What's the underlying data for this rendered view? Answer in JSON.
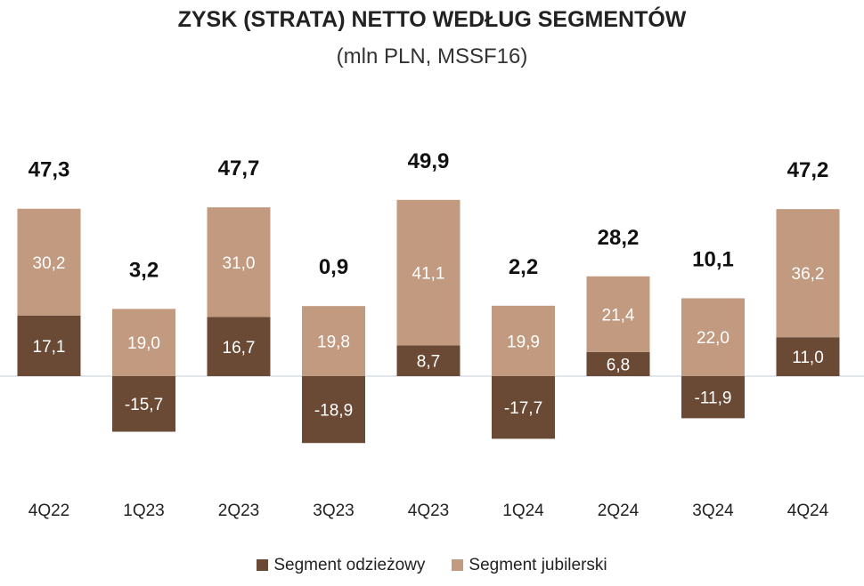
{
  "chart_data": {
    "type": "bar",
    "stacked": true,
    "title": "ZYSK (STRATA) NETTO WEDŁUG SEGMENTÓW",
    "subtitle": "(mln PLN, MSSF16)",
    "categories": [
      "4Q22",
      "1Q23",
      "2Q23",
      "3Q23",
      "4Q23",
      "1Q24",
      "2Q24",
      "3Q24",
      "4Q24"
    ],
    "series": [
      {
        "name": "Segment odzieżowy",
        "color": "#6b4a35",
        "values": [
          17.1,
          -15.7,
          16.7,
          -18.9,
          8.7,
          -17.7,
          6.8,
          -11.9,
          11.0
        ]
      },
      {
        "name": "Segment jubilerski",
        "color": "#c29a80",
        "values": [
          30.2,
          19.0,
          31.0,
          19.8,
          41.1,
          19.9,
          21.4,
          22.0,
          36.2
        ]
      }
    ],
    "totals": [
      47.3,
      3.2,
      47.7,
      0.9,
      49.9,
      2.2,
      28.2,
      10.1,
      47.2
    ],
    "legend": "bottom",
    "grid": false
  }
}
